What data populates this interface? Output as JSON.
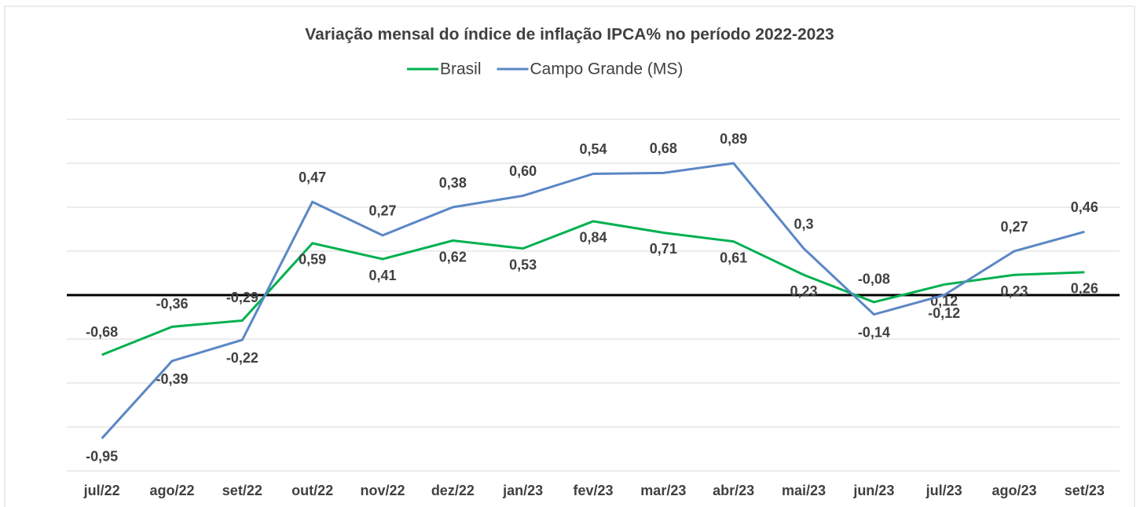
{
  "chart_data": {
    "type": "line",
    "stacked": true,
    "title": "Variação mensal do índice de inflação IPCA% no período 2022-2023",
    "categories": [
      "jul/22",
      "ago/22",
      "set/22",
      "out/22",
      "nov/22",
      "dez/22",
      "jan/23",
      "fev/23",
      "mar/23",
      "abr/23",
      "mai/23",
      "jun/23",
      "jul/23",
      "ago/23",
      "set/23"
    ],
    "series": [
      {
        "name": "Brasil",
        "color": "#00b050",
        "values": [
          -0.68,
          -0.36,
          -0.29,
          0.59,
          0.41,
          0.62,
          0.53,
          0.84,
          0.71,
          0.61,
          0.23,
          -0.08,
          0.12,
          0.23,
          0.26
        ],
        "value_labels": [
          "-0,68",
          "-0,36",
          "-0,29",
          "0,59",
          "0,41",
          "0,62",
          "0,53",
          "0,84",
          "0,71",
          "0,61",
          "0,23",
          "-0,08",
          "0,12",
          "0,23",
          "0,26"
        ]
      },
      {
        "name": "Campo Grande (MS)",
        "color": "#5b87c5",
        "values": [
          -0.95,
          -0.39,
          -0.22,
          0.47,
          0.27,
          0.38,
          0.6,
          0.54,
          0.68,
          0.89,
          0.3,
          -0.14,
          -0.12,
          0.27,
          0.46
        ],
        "value_labels": [
          "-0,95",
          "-0,39",
          "-0,22",
          "0,47",
          "0,27",
          "0,38",
          "0,60",
          "0,54",
          "0,68",
          "0,89",
          "0,3",
          "-0,14",
          "-0,12",
          "0,27",
          "0,46"
        ]
      }
    ],
    "ylim": [
      -2,
      2
    ],
    "yticks": [
      -2,
      -1.5,
      -1,
      -0.5,
      0,
      0.5,
      1,
      1.5,
      2
    ],
    "grid": true,
    "legend": "top"
  }
}
